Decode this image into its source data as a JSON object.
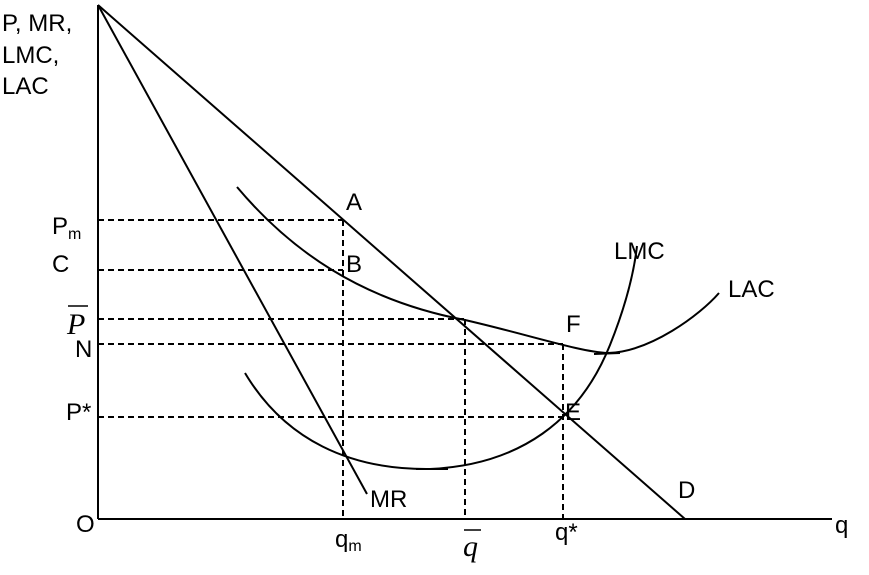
{
  "axes": {
    "y_label_lines": [
      "P, MR,",
      "LMC,",
      "LAC"
    ],
    "x_label": "q",
    "origin_label": "O"
  },
  "price_labels": {
    "pm_main": "P",
    "pm_sub": "m",
    "c": "C",
    "pbar": "P",
    "n": "N",
    "pstar": "P*"
  },
  "quantity_labels": {
    "qm_main": "q",
    "qm_sub": "m",
    "qbar": "q",
    "qstar": "q*"
  },
  "curve_labels": {
    "mr": "MR",
    "lmc": "LMC",
    "lac": "LAC",
    "d": "D"
  },
  "point_labels": {
    "a": "A",
    "b": "B",
    "f": "F",
    "e": "E"
  }
}
